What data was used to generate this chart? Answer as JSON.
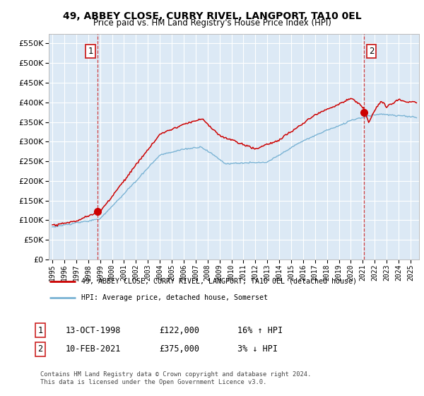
{
  "title_line1": "49, ABBEY CLOSE, CURRY RIVEL, LANGPORT, TA10 0EL",
  "title_line2": "Price paid vs. HM Land Registry's House Price Index (HPI)",
  "background_color": "#ffffff",
  "plot_bg_color": "#dce9f5",
  "grid_color": "#ffffff",
  "red_line_color": "#cc0000",
  "blue_line_color": "#7ab3d4",
  "sale1_year_x": 1998.79,
  "sale1_price": 122000,
  "sale2_year_x": 2021.12,
  "sale2_price": 375000,
  "legend_line1": "49, ABBEY CLOSE, CURRY RIVEL, LANGPORT, TA10 0EL (detached house)",
  "legend_line2": "HPI: Average price, detached house, Somerset",
  "table_row1": [
    "1",
    "13-OCT-1998",
    "£122,000",
    "16% ↑ HPI"
  ],
  "table_row2": [
    "2",
    "10-FEB-2021",
    "£375,000",
    "3% ↓ HPI"
  ],
  "footer": "Contains HM Land Registry data © Crown copyright and database right 2024.\nThis data is licensed under the Open Government Licence v3.0.",
  "ylim": [
    0,
    575000
  ],
  "yticks": [
    0,
    50000,
    100000,
    150000,
    200000,
    250000,
    300000,
    350000,
    400000,
    450000,
    500000,
    550000
  ],
  "xlim_start": 1994.7,
  "xlim_end": 2025.7,
  "xtick_years": [
    1995,
    1996,
    1997,
    1998,
    1999,
    2000,
    2001,
    2002,
    2003,
    2004,
    2005,
    2006,
    2007,
    2008,
    2009,
    2010,
    2011,
    2012,
    2013,
    2014,
    2015,
    2016,
    2017,
    2018,
    2019,
    2020,
    2021,
    2022,
    2023,
    2024,
    2025
  ]
}
